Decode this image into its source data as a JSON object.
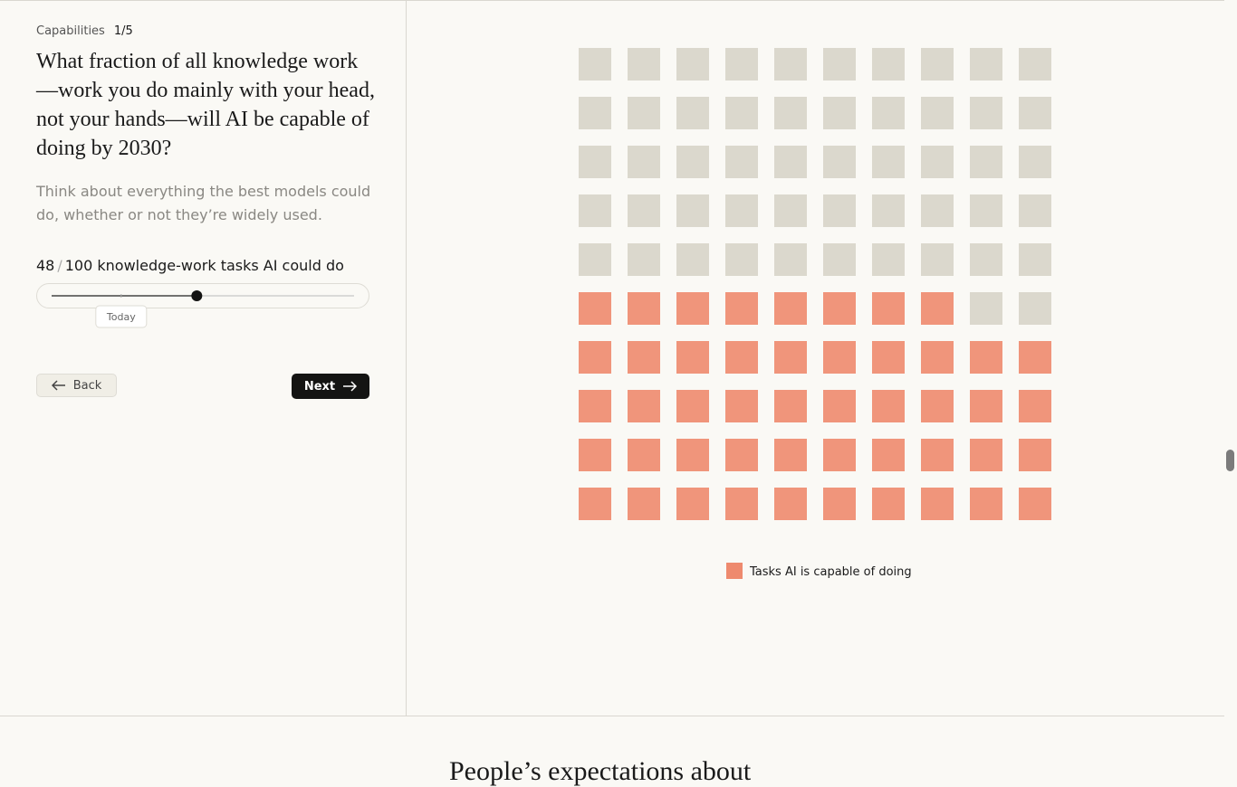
{
  "header": {
    "section": "Capabilities",
    "step": "1/5"
  },
  "question": "What fraction of all knowledge work—work you do mainly with your head, not your hands—will AI be capable of doing by 2030?",
  "hint": "Think about everything the best models could do, whether or not they’re widely used.",
  "slider": {
    "value": 48,
    "separator": "/",
    "max": 100,
    "min": 0,
    "unit_text": "knowledge-work tasks AI could do",
    "marker_value": 23,
    "marker_label": "Today"
  },
  "buttons": {
    "back": "Back",
    "next": "Next"
  },
  "waffle": {
    "filled_color": "#ee8a6e",
    "empty_color": "#d7d4c9",
    "legend": "Tasks AI is capable of doing"
  },
  "next_section_title": "People’s expectations about"
}
